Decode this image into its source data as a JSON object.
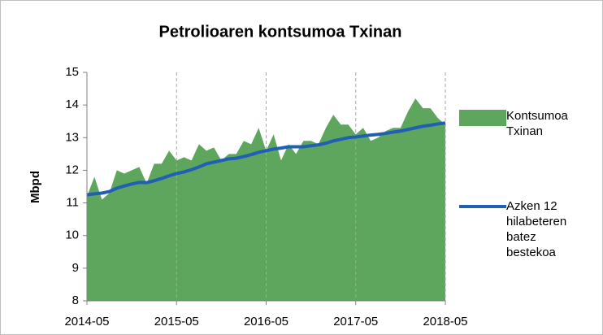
{
  "chart_data": {
    "type": "area_line",
    "title": "Petrolioaren kontsumoa Txinan",
    "y_label": "Mbpd",
    "x": [
      "2014-05",
      "2014-06",
      "2014-07",
      "2014-08",
      "2014-09",
      "2014-10",
      "2014-11",
      "2014-12",
      "2015-01",
      "2015-02",
      "2015-03",
      "2015-04",
      "2015-05",
      "2015-06",
      "2015-07",
      "2015-08",
      "2015-09",
      "2015-10",
      "2015-11",
      "2015-12",
      "2016-01",
      "2016-02",
      "2016-03",
      "2016-04",
      "2016-05",
      "2016-06",
      "2016-07",
      "2016-08",
      "2016-09",
      "2016-10",
      "2016-11",
      "2016-12",
      "2017-01",
      "2017-02",
      "2017-03",
      "2017-04",
      "2017-05",
      "2017-06",
      "2017-07",
      "2017-08",
      "2017-09",
      "2017-10",
      "2017-11",
      "2017-12",
      "2018-01",
      "2018-02",
      "2018-03",
      "2018-04",
      "2018-05"
    ],
    "xticks": [
      "2014-05",
      "2015-05",
      "2016-05",
      "2017-05",
      "2018-05"
    ],
    "ylim": [
      8,
      15
    ],
    "yticks": [
      8,
      9,
      10,
      11,
      12,
      13,
      14,
      15
    ],
    "x_grid": true,
    "series": [
      {
        "name": "Kontsumoa Txinan",
        "kind": "area",
        "color": "#5ea65e",
        "values": [
          11.2,
          11.8,
          11.1,
          11.3,
          12.0,
          11.9,
          12.0,
          12.1,
          11.6,
          12.2,
          12.2,
          12.6,
          12.3,
          12.4,
          12.3,
          12.8,
          12.6,
          12.7,
          12.3,
          12.5,
          12.5,
          12.9,
          12.8,
          13.3,
          12.6,
          13.1,
          12.3,
          12.8,
          12.5,
          12.9,
          12.9,
          12.8,
          13.3,
          13.7,
          13.4,
          13.4,
          13.1,
          13.3,
          12.9,
          13.0,
          13.2,
          13.3,
          13.3,
          13.8,
          14.2,
          13.9,
          13.9,
          13.6,
          13.4
        ]
      },
      {
        "name": "Azken 12 hilabeteren batez bestekoa",
        "kind": "line",
        "color": "#1f5fb4",
        "values": [
          11.25,
          11.28,
          11.3,
          11.35,
          11.45,
          11.52,
          11.58,
          11.63,
          11.62,
          11.68,
          11.75,
          11.83,
          11.9,
          11.95,
          12.02,
          12.1,
          12.2,
          12.25,
          12.3,
          12.35,
          12.37,
          12.42,
          12.48,
          12.55,
          12.6,
          12.65,
          12.68,
          12.72,
          12.72,
          12.72,
          12.75,
          12.78,
          12.83,
          12.9,
          12.95,
          13.0,
          13.02,
          13.05,
          13.08,
          13.1,
          13.13,
          13.17,
          13.2,
          13.25,
          13.3,
          13.35,
          13.38,
          13.42,
          13.45
        ]
      }
    ]
  }
}
